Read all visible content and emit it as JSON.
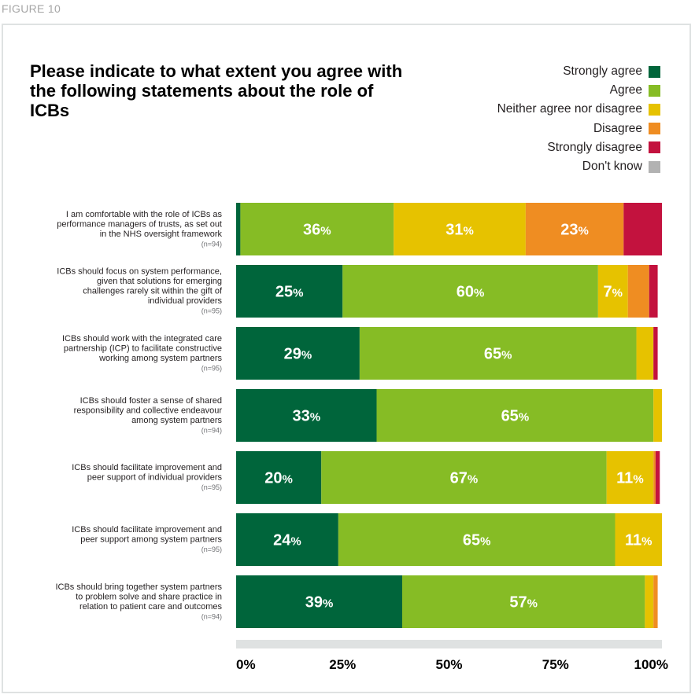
{
  "figure_label": "FIGURE 10",
  "chart_data": {
    "type": "bar",
    "orientation": "horizontal",
    "stacked": true,
    "title": "Please indicate to what extent you agree with the following statements about the role of ICBs",
    "categories": [
      {
        "label": [
          "I am comfortable with the role of ICBs as",
          "performance managers of trusts, as set out",
          "in the NHS oversight framework"
        ],
        "n": "(n=94)"
      },
      {
        "label": [
          "ICBs should focus on system performance,",
          "given that solutions for emerging",
          "challenges rarely sit within the gift of",
          "individual providers"
        ],
        "n": "(n=95)"
      },
      {
        "label": [
          "ICBs should work with the integrated care",
          "partnership (ICP) to facilitate constructive",
          "working among system partners"
        ],
        "n": "(n=95)"
      },
      {
        "label": [
          "ICBs should foster a sense of shared",
          "responsibility and collective endeavour",
          "among system partners"
        ],
        "n": "(n=94)"
      },
      {
        "label": [
          "ICBs should facilitate improvement and",
          "peer support of individual providers"
        ],
        "n": "(n=95)"
      },
      {
        "label": [
          "ICBs should facilitate improvement and",
          "peer support among system partners"
        ],
        "n": "(n=95)"
      },
      {
        "label": [
          "ICBs should bring together system partners",
          "to problem solve and share practice in",
          "relation to patient care and outcomes"
        ],
        "n": "(n=94)"
      }
    ],
    "series": [
      {
        "name": "Strongly agree",
        "color": "#00653b",
        "values": [
          1,
          25,
          29,
          33,
          20,
          24,
          39
        ]
      },
      {
        "name": "Agree",
        "color": "#86bc25",
        "values": [
          36,
          60,
          65,
          65,
          67,
          65,
          57
        ]
      },
      {
        "name": "Neither agree nor disagree",
        "color": "#e6c200",
        "values": [
          31,
          7,
          4,
          2,
          11,
          11,
          2
        ]
      },
      {
        "name": "Disagree",
        "color": "#ef8d22",
        "values": [
          23,
          5,
          0,
          0,
          0.5,
          0,
          1
        ]
      },
      {
        "name": "Strongly disagree",
        "color": "#c3123e",
        "values": [
          9,
          2,
          1,
          0,
          1,
          0,
          0
        ]
      },
      {
        "name": "Don't know",
        "color": "#b2b2b2",
        "values": [
          0,
          0,
          0,
          0,
          0,
          0,
          0
        ]
      }
    ],
    "data_labels": [
      [
        null,
        "36",
        "31",
        "23",
        null,
        null
      ],
      [
        "25",
        "60",
        "7",
        null,
        null,
        null
      ],
      [
        "29",
        "65",
        null,
        null,
        null,
        null
      ],
      [
        "33",
        "65",
        null,
        null,
        null,
        null
      ],
      [
        "20",
        "67",
        "11",
        null,
        null,
        null
      ],
      [
        "24",
        "65",
        "11",
        null,
        null,
        null
      ],
      [
        "39",
        "57",
        null,
        null,
        null,
        null
      ]
    ],
    "xlim": [
      0,
      100
    ],
    "x_ticks": [
      {
        "value": 0,
        "label": "0%"
      },
      {
        "value": 25,
        "label": "25%"
      },
      {
        "value": 50,
        "label": "50%"
      },
      {
        "value": 75,
        "label": "75%"
      },
      {
        "value": 100,
        "label": "100%"
      }
    ],
    "legend_position": "top-right"
  }
}
